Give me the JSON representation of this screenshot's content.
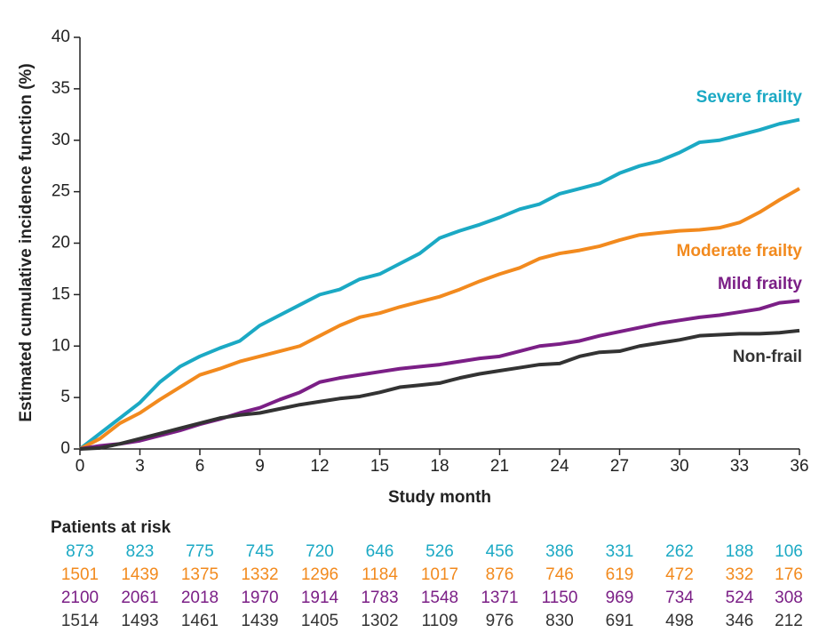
{
  "chart_data": {
    "type": "line",
    "y_label": "Estimated cumulative incidence function (%)",
    "x_label": "Study month",
    "xlim": [
      0,
      36
    ],
    "xticks": [
      0,
      3,
      6,
      9,
      12,
      15,
      18,
      21,
      24,
      27,
      30,
      33,
      36
    ],
    "ylim": [
      0,
      40
    ],
    "yticks": [
      0,
      5,
      10,
      15,
      20,
      25,
      30,
      35,
      40
    ],
    "x": [
      0,
      1,
      2,
      3,
      4,
      5,
      6,
      7,
      8,
      9,
      10,
      11,
      12,
      13,
      14,
      15,
      16,
      17,
      18,
      19,
      20,
      21,
      22,
      23,
      24,
      25,
      26,
      27,
      28,
      29,
      30,
      31,
      32,
      33,
      34,
      35,
      36
    ],
    "series": [
      {
        "name": "Severe frailty",
        "color": "#1ba9c4",
        "values": [
          0,
          1.5,
          3,
          4.5,
          6.5,
          8,
          9,
          9.8,
          10.5,
          12,
          13,
          14,
          15,
          15.5,
          16.5,
          17,
          18,
          19,
          20.5,
          21.2,
          21.8,
          22.5,
          23.3,
          23.8,
          24.8,
          25.3,
          25.8,
          26.8,
          27.5,
          28,
          28.8,
          29.8,
          30,
          30.5,
          31,
          31.6,
          32
        ]
      },
      {
        "name": "Moderate frailty",
        "color": "#f28a1e",
        "values": [
          0,
          1,
          2.5,
          3.5,
          4.8,
          6,
          7.2,
          7.8,
          8.5,
          9,
          9.5,
          10,
          11,
          12,
          12.8,
          13.2,
          13.8,
          14.3,
          14.8,
          15.5,
          16.3,
          17,
          17.6,
          18.5,
          19,
          19.3,
          19.7,
          20.3,
          20.8,
          21,
          21.2,
          21.3,
          21.5,
          22,
          23,
          24.2,
          25.3
        ]
      },
      {
        "name": "Mild frailty",
        "color": "#7b1f86",
        "values": [
          0,
          0.3,
          0.5,
          0.8,
          1.3,
          1.8,
          2.4,
          2.9,
          3.5,
          4,
          4.8,
          5.5,
          6.5,
          6.9,
          7.2,
          7.5,
          7.8,
          8,
          8.2,
          8.5,
          8.8,
          9,
          9.5,
          10,
          10.2,
          10.5,
          11,
          11.4,
          11.8,
          12.2,
          12.5,
          12.8,
          13,
          13.3,
          13.6,
          14.2,
          14.4
        ]
      },
      {
        "name": "Non-frail",
        "color": "#333333",
        "values": [
          0,
          0.1,
          0.5,
          1,
          1.5,
          2,
          2.5,
          3,
          3.3,
          3.5,
          3.9,
          4.3,
          4.6,
          4.9,
          5.1,
          5.5,
          6,
          6.2,
          6.4,
          6.9,
          7.3,
          7.6,
          7.9,
          8.2,
          8.3,
          9,
          9.4,
          9.5,
          10,
          10.3,
          10.6,
          11,
          11.1,
          11.2,
          11.2,
          11.3,
          11.5
        ]
      }
    ],
    "at_risk": {
      "title": "Patients at risk",
      "rows": [
        [
          873,
          823,
          775,
          745,
          720,
          646,
          526,
          456,
          386,
          331,
          262,
          188,
          106
        ],
        [
          1501,
          1439,
          1375,
          1332,
          1296,
          1184,
          1017,
          876,
          746,
          619,
          472,
          332,
          176
        ],
        [
          2100,
          2061,
          2018,
          1970,
          1914,
          1783,
          1548,
          1371,
          1150,
          969,
          734,
          524,
          308
        ],
        [
          1514,
          1493,
          1461,
          1439,
          1405,
          1302,
          1109,
          976,
          830,
          691,
          498,
          346,
          212
        ]
      ]
    }
  }
}
